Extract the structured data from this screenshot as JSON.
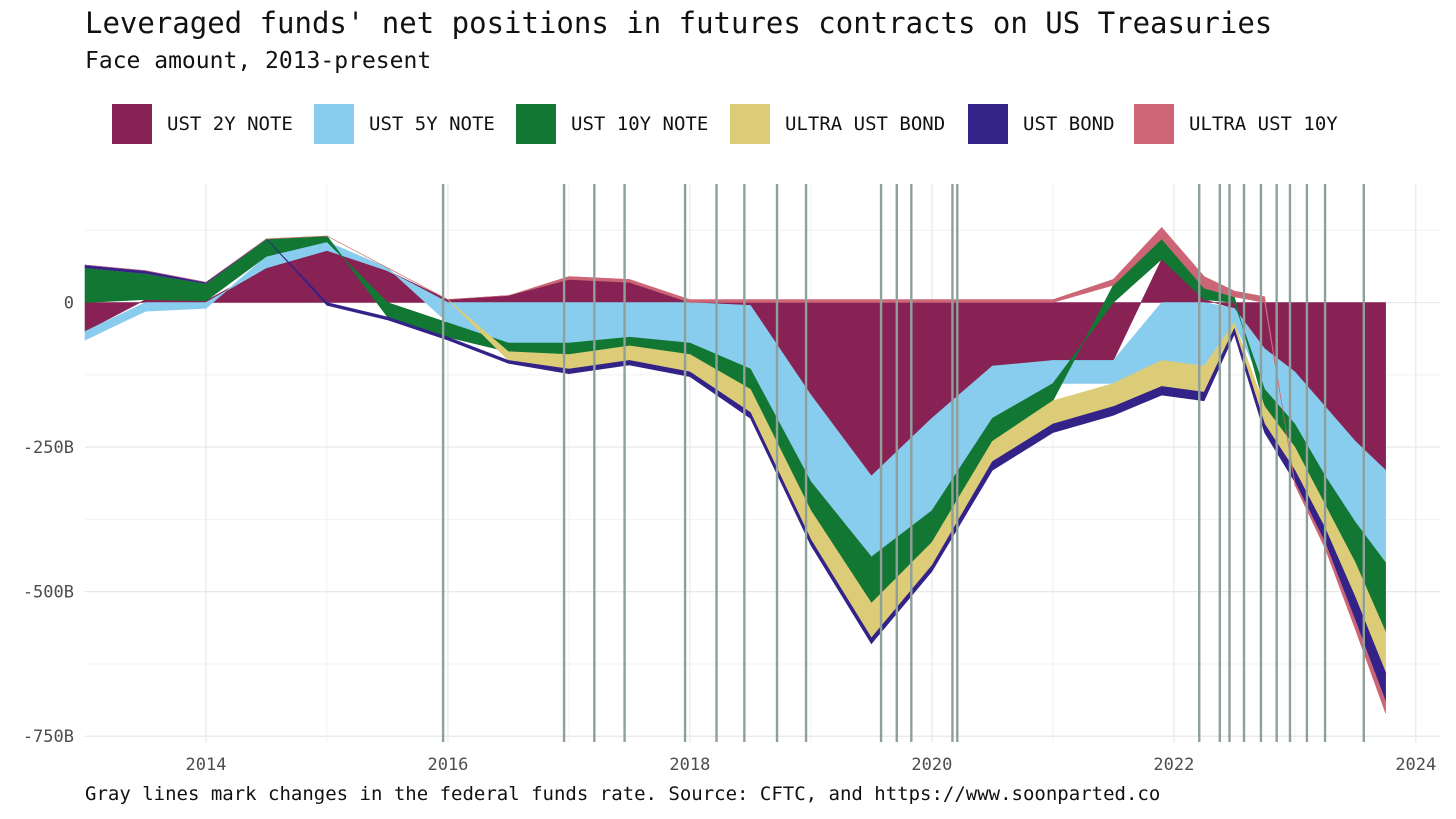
{
  "chart_data": {
    "type": "area",
    "title": "Leveraged funds' net positions in futures contracts on US Treasuries",
    "subtitle": "Face amount, 2013-present",
    "caption": "Gray lines mark changes in the federal funds rate. Source: CFTC, and https://www.soonparted.co",
    "xlabel": "",
    "ylabel": "",
    "xlim": [
      2013.0,
      2024.2
    ],
    "ylim": [
      -760,
      205
    ],
    "x_ticks": [
      2014,
      2016,
      2018,
      2020,
      2022,
      2024
    ],
    "x_tick_labels": [
      "2014",
      "2016",
      "2018",
      "2020",
      "2022",
      "2024"
    ],
    "y_ticks": [
      0,
      -250,
      -500,
      -750
    ],
    "y_tick_labels": [
      "0",
      "-250B",
      "-500B",
      "-750B"
    ],
    "grid": true,
    "legend_position": "top",
    "x": [
      2013.0,
      2013.5,
      2014.0,
      2014.5,
      2015.0,
      2015.5,
      2016.0,
      2016.5,
      2017.0,
      2017.5,
      2018.0,
      2018.5,
      2019.0,
      2019.5,
      2020.0,
      2020.5,
      2021.0,
      2021.5,
      2021.9,
      2022.25,
      2022.5,
      2022.75,
      2023.0,
      2023.25,
      2023.5,
      2023.75
    ],
    "series": [
      {
        "name": "UST 2Y NOTE",
        "color": "#882255",
        "values": [
          -50,
          5,
          3,
          60,
          90,
          55,
          5,
          12,
          40,
          35,
          0,
          -5,
          -160,
          -300,
          -200,
          -110,
          -100,
          -100,
          75,
          5,
          -10,
          -80,
          -120,
          -180,
          -240,
          -290
        ]
      },
      {
        "name": "UST 5Y NOTE",
        "color": "#88CCEE",
        "values": [
          -15,
          -15,
          -10,
          20,
          15,
          5,
          -35,
          -70,
          -70,
          -60,
          -70,
          -110,
          -150,
          -140,
          -160,
          -90,
          -40,
          -40,
          -100,
          -110,
          -25,
          -70,
          -90,
          -120,
          -140,
          -160
        ]
      },
      {
        "name": "UST 10Y NOTE",
        "color": "#117733",
        "values": [
          60,
          45,
          30,
          30,
          10,
          -25,
          -25,
          -15,
          -20,
          -15,
          -20,
          -35,
          -50,
          -80,
          -55,
          -40,
          -30,
          30,
          35,
          20,
          10,
          -30,
          -40,
          -50,
          -70,
          -120
        ]
      },
      {
        "name": "ULTRA UST BOND",
        "color": "#DDCC77",
        "values": [
          0,
          0,
          0,
          0,
          0,
          0,
          0,
          -15,
          -25,
          -25,
          -30,
          -40,
          -50,
          -60,
          -40,
          -35,
          -40,
          -40,
          -45,
          -45,
          -10,
          -30,
          -40,
          -40,
          -60,
          -70
        ]
      },
      {
        "name": "UST BOND",
        "color": "#332288",
        "values": [
          5,
          5,
          2,
          0,
          -5,
          -5,
          -5,
          -5,
          -8,
          -8,
          -8,
          -10,
          -10,
          -10,
          -10,
          -15,
          -15,
          -15,
          -15,
          -15,
          -10,
          -15,
          -20,
          -25,
          -40,
          -50
        ]
      },
      {
        "name": "ULTRA UST 10Y",
        "color": "#CC6677",
        "values": [
          0,
          0,
          0,
          0,
          0,
          0,
          0,
          0,
          5,
          5,
          5,
          5,
          5,
          5,
          5,
          5,
          5,
          10,
          20,
          20,
          10,
          10,
          -5,
          -10,
          -15,
          -20
        ]
      }
    ],
    "rate_change_dates": [
      2015.96,
      2016.96,
      2017.21,
      2017.46,
      2017.96,
      2018.22,
      2018.45,
      2018.72,
      2018.96,
      2019.58,
      2019.71,
      2019.83,
      2020.17,
      2020.21,
      2022.21,
      2022.38,
      2022.46,
      2022.58,
      2022.72,
      2022.85,
      2022.96,
      2023.1,
      2023.25,
      2023.57
    ]
  }
}
